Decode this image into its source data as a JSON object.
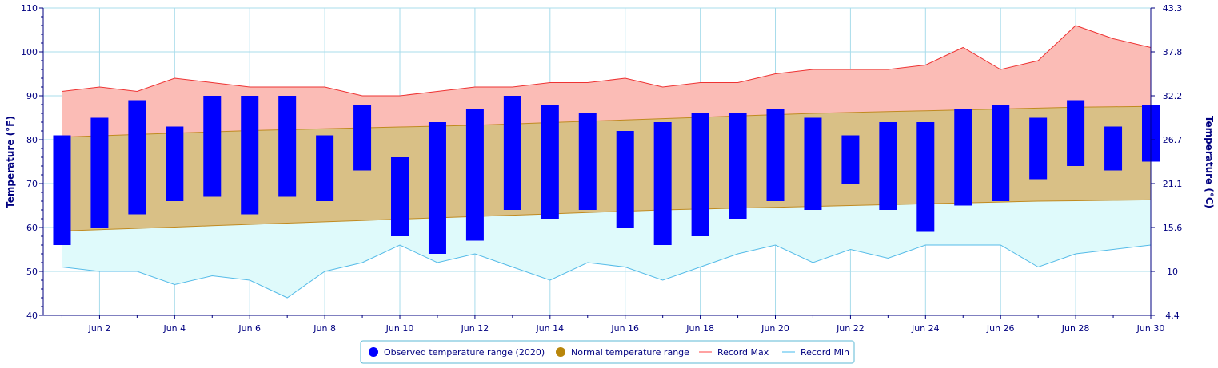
{
  "chart_data": {
    "type": "bar",
    "title": "",
    "ylabel_left": "Temperature (°F)",
    "ylabel_right": "Temperature (°C)",
    "ylim_f": [
      40,
      110
    ],
    "y_ticks_f": [
      "40",
      "50",
      "60",
      "70",
      "80",
      "90",
      "100",
      "110"
    ],
    "y_ticks_c": [
      "4.4",
      "10",
      "15.6",
      "21.1",
      "26.7",
      "32.2",
      "37.8",
      "43.3"
    ],
    "x_days": [
      1,
      2,
      3,
      4,
      5,
      6,
      7,
      8,
      9,
      10,
      11,
      12,
      13,
      14,
      15,
      16,
      17,
      18,
      19,
      20,
      21,
      22,
      23,
      24,
      25,
      26,
      27,
      28,
      29,
      30
    ],
    "x_tick_labels": [
      "Jun 2",
      "Jun 4",
      "Jun 6",
      "Jun 8",
      "Jun 10",
      "Jun 12",
      "Jun 14",
      "Jun 16",
      "Jun 18",
      "Jun 20",
      "Jun 22",
      "Jun 24",
      "Jun 26",
      "Jun 28",
      "Jun 30"
    ],
    "observed_low": [
      56,
      60,
      63,
      66,
      67,
      63,
      67,
      66,
      73,
      58,
      54,
      57,
      64,
      62,
      64,
      60,
      56,
      58,
      62,
      66,
      64,
      70,
      64,
      59,
      65,
      66,
      71,
      74,
      73,
      75
    ],
    "observed_high": [
      81,
      85,
      89,
      83,
      90,
      90,
      90,
      81,
      88,
      76,
      84,
      87,
      90,
      88,
      86,
      82,
      84,
      86,
      86,
      87,
      85,
      81,
      84,
      84,
      87,
      88,
      85,
      89,
      83,
      88
    ],
    "normal_low": [
      59.2,
      59.5,
      59.8,
      60.1,
      60.4,
      60.7,
      61.0,
      61.3,
      61.6,
      61.9,
      62.2,
      62.5,
      62.8,
      63.1,
      63.4,
      63.7,
      64.0,
      64.2,
      64.4,
      64.6,
      64.8,
      65.0,
      65.2,
      65.4,
      65.6,
      65.8,
      66.0,
      66.1,
      66.2,
      66.3
    ],
    "normal_high": [
      80.6,
      80.9,
      81.2,
      81.5,
      81.8,
      82.1,
      82.3,
      82.5,
      82.7,
      82.9,
      83.1,
      83.3,
      83.6,
      83.9,
      84.2,
      84.5,
      84.8,
      85.1,
      85.4,
      85.7,
      86.0,
      86.2,
      86.4,
      86.6,
      86.8,
      87.0,
      87.2,
      87.4,
      87.5,
      87.6
    ],
    "record_max": [
      91,
      92,
      91,
      94,
      93,
      92,
      92,
      92,
      90,
      90,
      91,
      92,
      92,
      93,
      93,
      94,
      92,
      93,
      93,
      95,
      96,
      96,
      96,
      97,
      101,
      96,
      98,
      106,
      103,
      101
    ],
    "record_min": [
      51,
      50,
      50,
      47,
      49,
      48,
      44,
      50,
      52,
      56,
      52,
      54,
      51,
      48,
      52,
      51,
      48,
      51,
      54,
      56,
      52,
      55,
      53,
      56,
      56,
      56,
      51,
      54,
      55,
      56
    ],
    "series": [
      {
        "name": "Observed temperature range (2020)",
        "color": "#0000ff"
      },
      {
        "name": "Normal temperature range",
        "color": "#b8860b"
      },
      {
        "name": "Record Max",
        "color": "#ff4444"
      },
      {
        "name": "Record Min",
        "color": "#44bbee"
      }
    ],
    "grid": true,
    "legend_position": "bottom-center"
  },
  "colors": {
    "observed": "#0000ff",
    "normal_fill": "#d9c086",
    "normal_line": "#c08a20",
    "record_max_fill": "#fbbcb6",
    "record_max_line": "#ee3333",
    "record_min_fill": "#dffafb",
    "record_min_line": "#55bbe8",
    "grid": "#a8dceb",
    "axis": "#000080"
  }
}
